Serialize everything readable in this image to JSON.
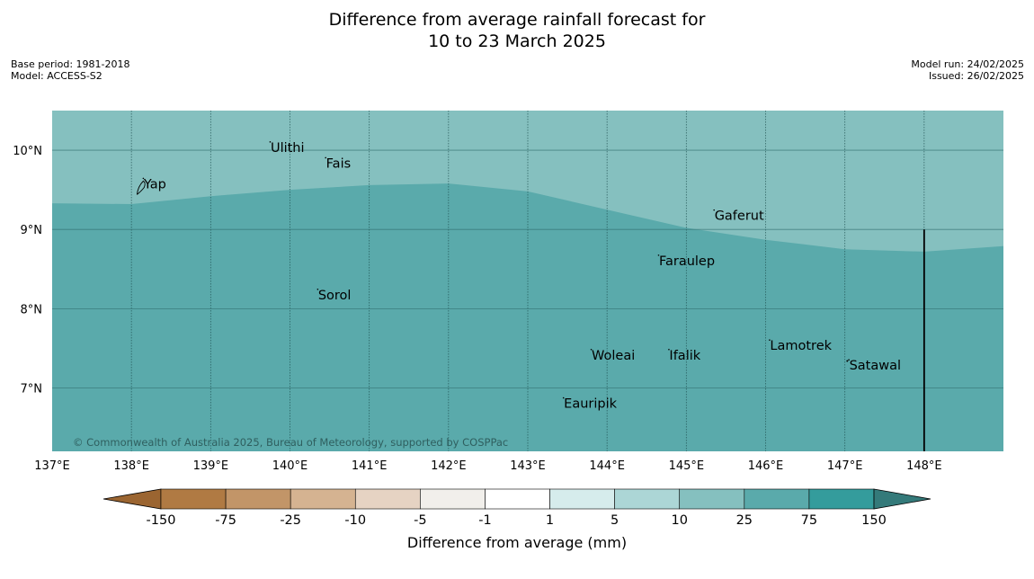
{
  "title_line1": "Difference from average rainfall forecast for",
  "title_line2": "10 to 23 March 2025",
  "meta_left": [
    "Base period: 1981-2018",
    "Model: ACCESS-S2"
  ],
  "meta_right": [
    "Model run: 24/02/2025",
    "Issued: 26/02/2025"
  ],
  "copyright": "© Commonwealth of Australia 2025, Bureau of Meteorology, supported by COSPPac",
  "map": {
    "lon_range": [
      137,
      149
    ],
    "lat_range": [
      6.2,
      10.5
    ],
    "lon_ticks": [
      {
        "value": 137,
        "label": "137°E"
      },
      {
        "value": 138,
        "label": "138°E"
      },
      {
        "value": 139,
        "label": "139°E"
      },
      {
        "value": 140,
        "label": "140°E"
      },
      {
        "value": 141,
        "label": "141°E"
      },
      {
        "value": 142,
        "label": "142°E"
      },
      {
        "value": 143,
        "label": "143°E"
      },
      {
        "value": 144,
        "label": "144°E"
      },
      {
        "value": 145,
        "label": "145°E"
      },
      {
        "value": 146,
        "label": "146°E"
      },
      {
        "value": 147,
        "label": "147°E"
      },
      {
        "value": 148,
        "label": "148°E"
      }
    ],
    "lat_ticks": [
      {
        "value": 10,
        "label": "10°N"
      },
      {
        "value": 9,
        "label": "9°N"
      },
      {
        "value": 8,
        "label": "8°N"
      },
      {
        "value": 7,
        "label": "7°N"
      }
    ],
    "regions": [
      {
        "category": "10 to 25",
        "color": "#85c0bf"
      },
      {
        "category": "25 to 75",
        "color": "#5aaaab"
      }
    ],
    "boundary": [
      [
        137,
        9.33
      ],
      [
        138,
        9.32
      ],
      [
        139,
        9.42
      ],
      [
        140,
        9.5
      ],
      [
        141,
        9.56
      ],
      [
        142,
        9.58
      ],
      [
        143,
        9.48
      ],
      [
        144,
        9.25
      ],
      [
        145,
        9.02
      ],
      [
        146,
        8.87
      ],
      [
        147,
        8.75
      ],
      [
        148,
        8.72
      ],
      [
        149,
        8.79
      ]
    ],
    "meridian_line_lon": 148,
    "meridian_line_lat_top": 9.0,
    "places": [
      {
        "name": "Ulithi",
        "lon": 139.75,
        "lat": 9.98
      },
      {
        "name": "Fais",
        "lon": 140.45,
        "lat": 9.78
      },
      {
        "name": "Yap",
        "lon": 138.15,
        "lat": 9.52
      },
      {
        "name": "Gaferut",
        "lon": 145.35,
        "lat": 9.12
      },
      {
        "name": "Faraulep",
        "lon": 144.65,
        "lat": 8.55
      },
      {
        "name": "Sorol",
        "lon": 140.35,
        "lat": 8.12
      },
      {
        "name": "Lamotrek",
        "lon": 146.05,
        "lat": 7.48
      },
      {
        "name": "Woleai",
        "lon": 143.8,
        "lat": 7.36
      },
      {
        "name": "Ifalik",
        "lon": 144.78,
        "lat": 7.36
      },
      {
        "name": "Satawal",
        "lon": 147.05,
        "lat": 7.23
      },
      {
        "name": "Eauripik",
        "lon": 143.45,
        "lat": 6.75
      }
    ]
  },
  "colorbar": {
    "label": "Difference from average (mm)",
    "tick_labels": [
      "-150",
      "-75",
      "-25",
      "-10",
      "-5",
      "-1",
      "1",
      "5",
      "10",
      "25",
      "75",
      "150"
    ],
    "colors": [
      "#b07a43",
      "#c29568",
      "#d5b391",
      "#e6d3c3",
      "#f1efeb",
      "#ffffff",
      "#d6ecec",
      "#acd6d6",
      "#85c0bf",
      "#5aaaab",
      "#349c9c"
    ],
    "under_color": "#9b6531",
    "over_color": "#347a7a"
  }
}
